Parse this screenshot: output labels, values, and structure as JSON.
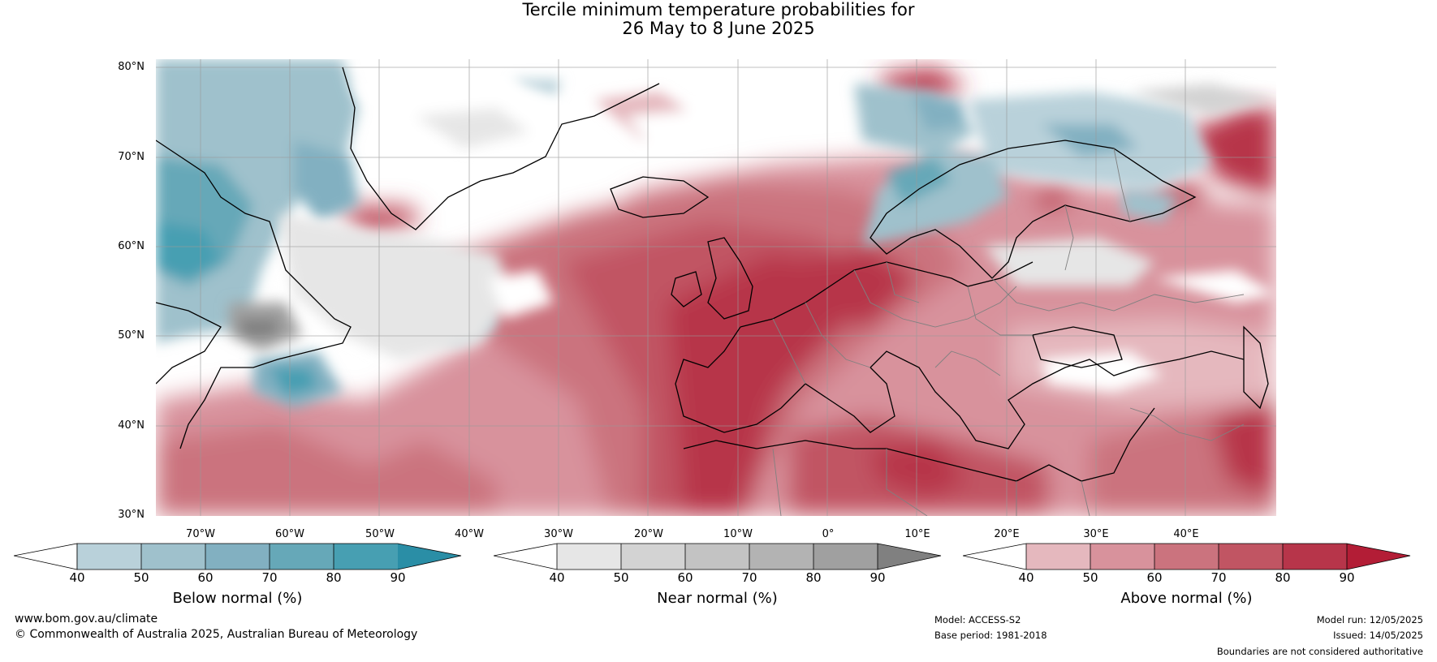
{
  "title": {
    "line1": "Tercile minimum temperature probabilities for",
    "line2": "26 May to 8 June 2025"
  },
  "map": {
    "lat_labels": [
      "80°N",
      "70°N",
      "60°N",
      "50°N",
      "40°N",
      "30°N"
    ],
    "lon_labels": [
      "70°W",
      "60°W",
      "50°W",
      "40°W",
      "30°W",
      "20°W",
      "10°W",
      "0°",
      "10°E",
      "20°E",
      "30°E",
      "40°E"
    ],
    "ocean_color": "#ffffff",
    "land_outline_color": "#000000",
    "border_color": "#808080"
  },
  "colorbars": [
    {
      "label": "Below normal (%)",
      "ticks": [
        "40",
        "50",
        "60",
        "70",
        "80",
        "90"
      ],
      "colors": [
        "#ffffff",
        "#b9d1da",
        "#9fc1cc",
        "#82b0c1",
        "#66a8b8",
        "#479fb2",
        "#2a8ea6"
      ]
    },
    {
      "label": "Near normal (%)",
      "ticks": [
        "40",
        "50",
        "60",
        "70",
        "80",
        "90"
      ],
      "colors": [
        "#ffffff",
        "#e6e6e6",
        "#d3d3d3",
        "#c3c3c3",
        "#b3b3b3",
        "#a0a0a0",
        "#808080"
      ]
    },
    {
      "label": "Above normal (%)",
      "ticks": [
        "40",
        "50",
        "60",
        "70",
        "80",
        "90"
      ],
      "colors": [
        "#ffffff",
        "#e5b8be",
        "#d8929c",
        "#cb737e",
        "#c15563",
        "#b7354a",
        "#b31d36"
      ]
    }
  ],
  "footer": {
    "website": "www.bom.gov.au/climate",
    "copyright": "© Commonwealth of Australia 2025, Australian Bureau of Meteorology",
    "model": "Model: ACCESS-S2",
    "base_period": "Base period: 1981-2018",
    "model_run": "Model run: 12/05/2025",
    "issued": "Issued: 14/05/2025",
    "disclaimer": "Boundaries are not considered authoritative"
  }
}
